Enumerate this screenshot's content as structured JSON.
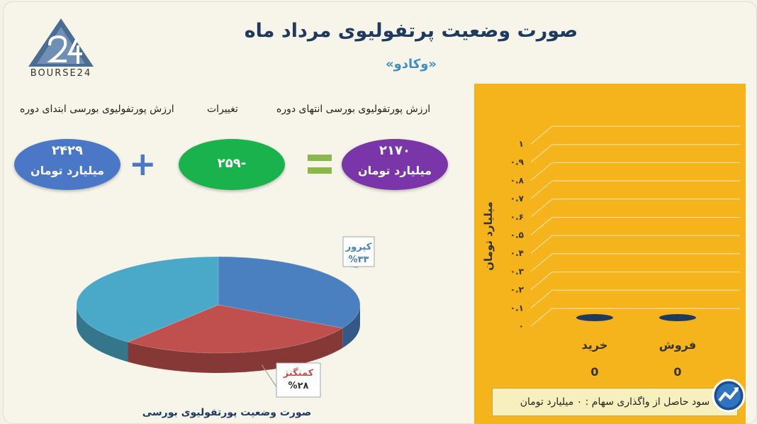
{
  "title": "صورت وضعیت پرتفولیوی مرداد ماه",
  "subtitle": "«وکادو»",
  "logo": {
    "text": "BOURSE24"
  },
  "summary": {
    "start_label": "ارزش پورتفولیوی بورسی ابتدای دوره",
    "change_label": "تغییرات",
    "end_label": "ارزش پورتفولیوی بورسی انتهای دوره",
    "start_value": "۲۴۲۹",
    "change_value": "-۲۵۹",
    "end_value": "۲۱۷۰",
    "unit": "میلیارد تومان",
    "plus_symbol": "+",
    "equals_symbol": "="
  },
  "colors": {
    "start": "#4a78c6",
    "change": "#19b24c",
    "end": "#7a35a8",
    "panel": "#f5b41c"
  },
  "chart_data": [
    {
      "type": "pie",
      "title": "صورت وضعیت پورتفولیوی بورسی",
      "slices": [
        {
          "label": "کپرور",
          "value_label": "%۳۳",
          "value": 33,
          "color": "#4a7fc0"
        },
        {
          "label": "کمنگنز",
          "value_label": "%۲۸",
          "value": 28,
          "color": "#c0504d"
        },
        {
          "label": "",
          "value_label": "",
          "value": 39,
          "color": "#4aa8c8"
        }
      ]
    },
    {
      "type": "bar",
      "ylabel": "میلیارد تومان",
      "categories": [
        "خرید",
        "فروش"
      ],
      "values": [
        0,
        0
      ],
      "value_labels": [
        "0",
        "0"
      ],
      "ylim": [
        0,
        1
      ],
      "yticks": [
        "۰",
        "۰.۱",
        "۰.۲",
        "۰.۳",
        "۰.۴",
        "۰.۵",
        "۰.۶",
        "۰.۷",
        "۰.۸",
        "۰.۹",
        "۱"
      ],
      "grid": true
    }
  ],
  "profit_note": "سود حاصل از واگذاری سهام : ۰ میلیارد تومان"
}
